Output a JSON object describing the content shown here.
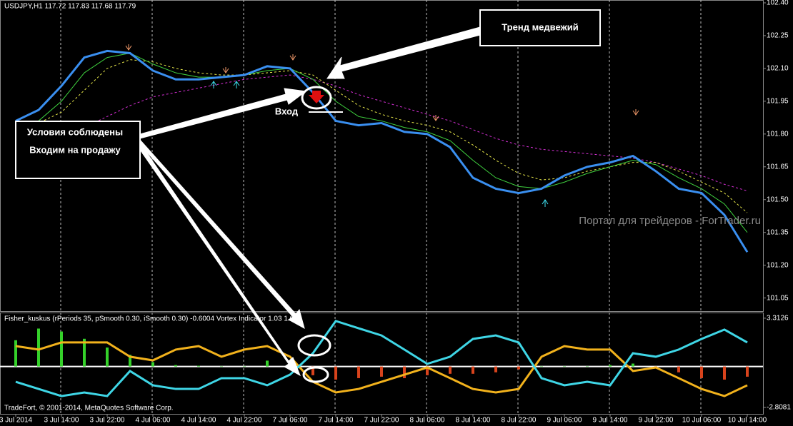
{
  "chart_data": [
    {
      "type": "line",
      "title": "USDJPY,H1  117.72 117.83 117.68 117.79",
      "categories": [
        "3 Jul 2014",
        null,
        "3 Jul 14:00",
        null,
        "3 Jul 22:00",
        null,
        "4 Jul 06:00",
        null,
        "4 Jul 14:00",
        null,
        "4 Jul 22:00",
        null,
        "7 Jul 06:00",
        null,
        "7 Jul 14:00",
        null,
        "7 Jul 22:00",
        null,
        "8 Jul 06:00",
        null,
        "8 Jul 14:00",
        null,
        "8 Jul 22:00",
        null,
        "9 Jul 06:00",
        null,
        "9 Jul 14:00",
        null,
        "9 Jul 22:00",
        null,
        "10 Jul 06:00",
        null,
        "10 Jul 14:00"
      ],
      "series": [
        {
          "color": "#d62fd6",
          "dash": true,
          "values": [
            101.66,
            101.7,
            101.76,
            101.83,
            101.88,
            101.93,
            101.97,
            101.99,
            102.01,
            102.03,
            102.05,
            102.06,
            102.07,
            102.05,
            102.02,
            101.98,
            101.95,
            101.92,
            101.89,
            101.86,
            101.82,
            101.78,
            101.75,
            101.73,
            101.72,
            101.71,
            101.7,
            101.69,
            101.67,
            101.64,
            101.61,
            101.57,
            101.54
          ]
        },
        {
          "color": "#e8e84a",
          "dash": true,
          "values": [
            101.82,
            101.85,
            101.9,
            102.0,
            102.1,
            102.14,
            102.13,
            102.1,
            102.08,
            102.07,
            102.07,
            102.08,
            102.09,
            102.07,
            102.0,
            101.93,
            101.89,
            101.86,
            101.84,
            101.81,
            101.75,
            101.68,
            101.62,
            101.59,
            101.6,
            101.63,
            101.65,
            101.67,
            101.67,
            101.63,
            101.58,
            101.53,
            101.44
          ]
        },
        {
          "color": "#3fd13f",
          "dash": false,
          "values": [
            101.8,
            101.86,
            101.95,
            102.08,
            102.15,
            102.17,
            102.12,
            102.08,
            102.06,
            102.06,
            102.07,
            102.09,
            102.1,
            102.05,
            101.95,
            101.88,
            101.86,
            101.83,
            101.81,
            101.77,
            101.68,
            101.6,
            101.56,
            101.55,
            101.58,
            101.62,
            101.65,
            101.68,
            101.66,
            101.6,
            101.55,
            101.48,
            101.35
          ]
        },
        {
          "color": "#3a8ff0",
          "dash": false,
          "width": 3,
          "values": [
            101.86,
            101.91,
            102.02,
            102.15,
            102.18,
            102.17,
            102.09,
            102.05,
            102.05,
            102.06,
            102.07,
            102.11,
            102.1,
            101.99,
            101.86,
            101.84,
            101.85,
            101.81,
            101.8,
            101.74,
            101.6,
            101.55,
            101.53,
            101.55,
            101.61,
            101.65,
            101.67,
            101.7,
            101.63,
            101.55,
            101.53,
            101.43,
            101.26
          ]
        }
      ],
      "ylim": [
        100.99,
        102.413
      ],
      "yticks": [
        {
          "value": 102.4,
          "label": "102.40"
        },
        {
          "value": 102.25,
          "label": "102.25"
        },
        {
          "value": 102.1,
          "label": "102.10"
        },
        {
          "value": 101.95,
          "label": "101.95"
        },
        {
          "value": 101.8,
          "label": "101.80"
        },
        {
          "value": 101.65,
          "label": "101.65"
        },
        {
          "value": 101.5,
          "label": "101.50"
        },
        {
          "value": 101.35,
          "label": "101.35"
        },
        {
          "value": 101.2,
          "label": "101.20"
        },
        {
          "value": 101.05,
          "label": "101.05"
        }
      ]
    },
    {
      "type": "line",
      "title": "Fisher_kuskus (rPeriods 35, pSmooth 0.30, iSmooth 0.30)  -0.6004  Vortex Indicator 1.03 1.01",
      "series": [
        {
          "type": "bar",
          "color": "#35d12a",
          "negative_color": "#d8431c",
          "values": [
            1.8,
            2.6,
            2.4,
            1.9,
            1.3,
            0.8,
            0.3,
            0.1,
            0.05,
            0,
            0,
            0.4,
            0,
            -0.6,
            -0.9,
            -0.8,
            -0.7,
            -0.8,
            -0.6,
            -0.5,
            -0.5,
            -0.4,
            -0.2,
            0,
            0,
            0,
            0.1,
            0.2,
            -0.1,
            -0.4,
            -0.8,
            -0.9,
            -0.7
          ]
        },
        {
          "color": "#f2b21c",
          "values": [
            1.4,
            1.16,
            1.65,
            1.65,
            1.65,
            0.67,
            0.42,
            1.16,
            1.4,
            0.67,
            1.16,
            1.4,
            0.67,
            -1.05,
            -1.78,
            -1.54,
            -1.05,
            -0.56,
            -0.07,
            -0.8,
            -1.54,
            -1.78,
            -1.54,
            0.67,
            1.4,
            1.16,
            1.16,
            -0.31,
            -0.07,
            -0.8,
            -1.54,
            -2.03,
            -1.29
          ]
        },
        {
          "color": "#3fd6e6",
          "values": [
            -1.05,
            -1.54,
            -2.03,
            -1.78,
            -2.03,
            -0.31,
            -1.29,
            -1.54,
            -1.54,
            -0.8,
            -0.8,
            -1.29,
            -0.56,
            0.91,
            3.12,
            2.62,
            2.13,
            1.16,
            0.18,
            0.67,
            1.89,
            2.13,
            1.65,
            -0.8,
            -1.29,
            -1.05,
            -1.29,
            0.91,
            0.67,
            1.16,
            1.89,
            2.53,
            1.65
          ]
        }
      ],
      "ylim": [
        -3.25,
        3.7
      ],
      "yticks": [
        3.3126,
        -2.8081
      ]
    }
  ],
  "footer": "TradeFort, © 2001-2014, MetaQuotes Software Corp.",
  "watermark": "Портал для трейдеров - ForTrader.ru",
  "annotations": {
    "trend": "Тренд медвежий",
    "conditions": [
      "Условия соблюдены",
      "Входим на продажу"
    ],
    "entry": "Вход"
  }
}
